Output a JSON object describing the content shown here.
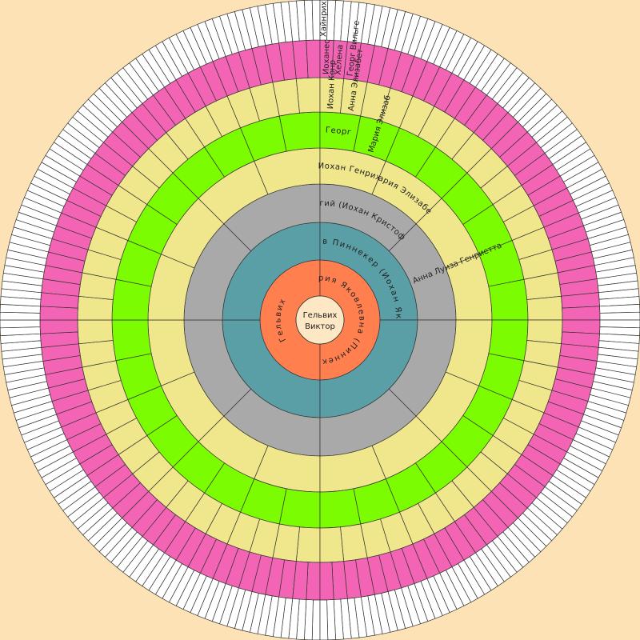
{
  "center": {
    "lines": [
      "Гельвих",
      "Виктор"
    ]
  },
  "rings": [
    {
      "0": "Гельвих",
      "1": "Мария Яковлевна (Пиннекер)"
    },
    {
      "2": "Яков Пиннекер (Иохан Якоб)"
    },
    {
      "4": "Гергий (Иохан Кристофер)",
      "5": "Анна Луиза Генриетта"
    },
    {
      "8": "Иохан Генрих",
      "9": "Мария Элизабет"
    },
    {
      "16": "Георг",
      "17": "Мария Элизаб"
    },
    {
      "32": "Иохан Конр",
      "33": "Анна Элизабет"
    },
    {
      "64": "Иоханес",
      "65": "Хелена",
      "66": "Георг Вильге"
    },
    {
      "128": "Хайнрих"
    }
  ]
}
